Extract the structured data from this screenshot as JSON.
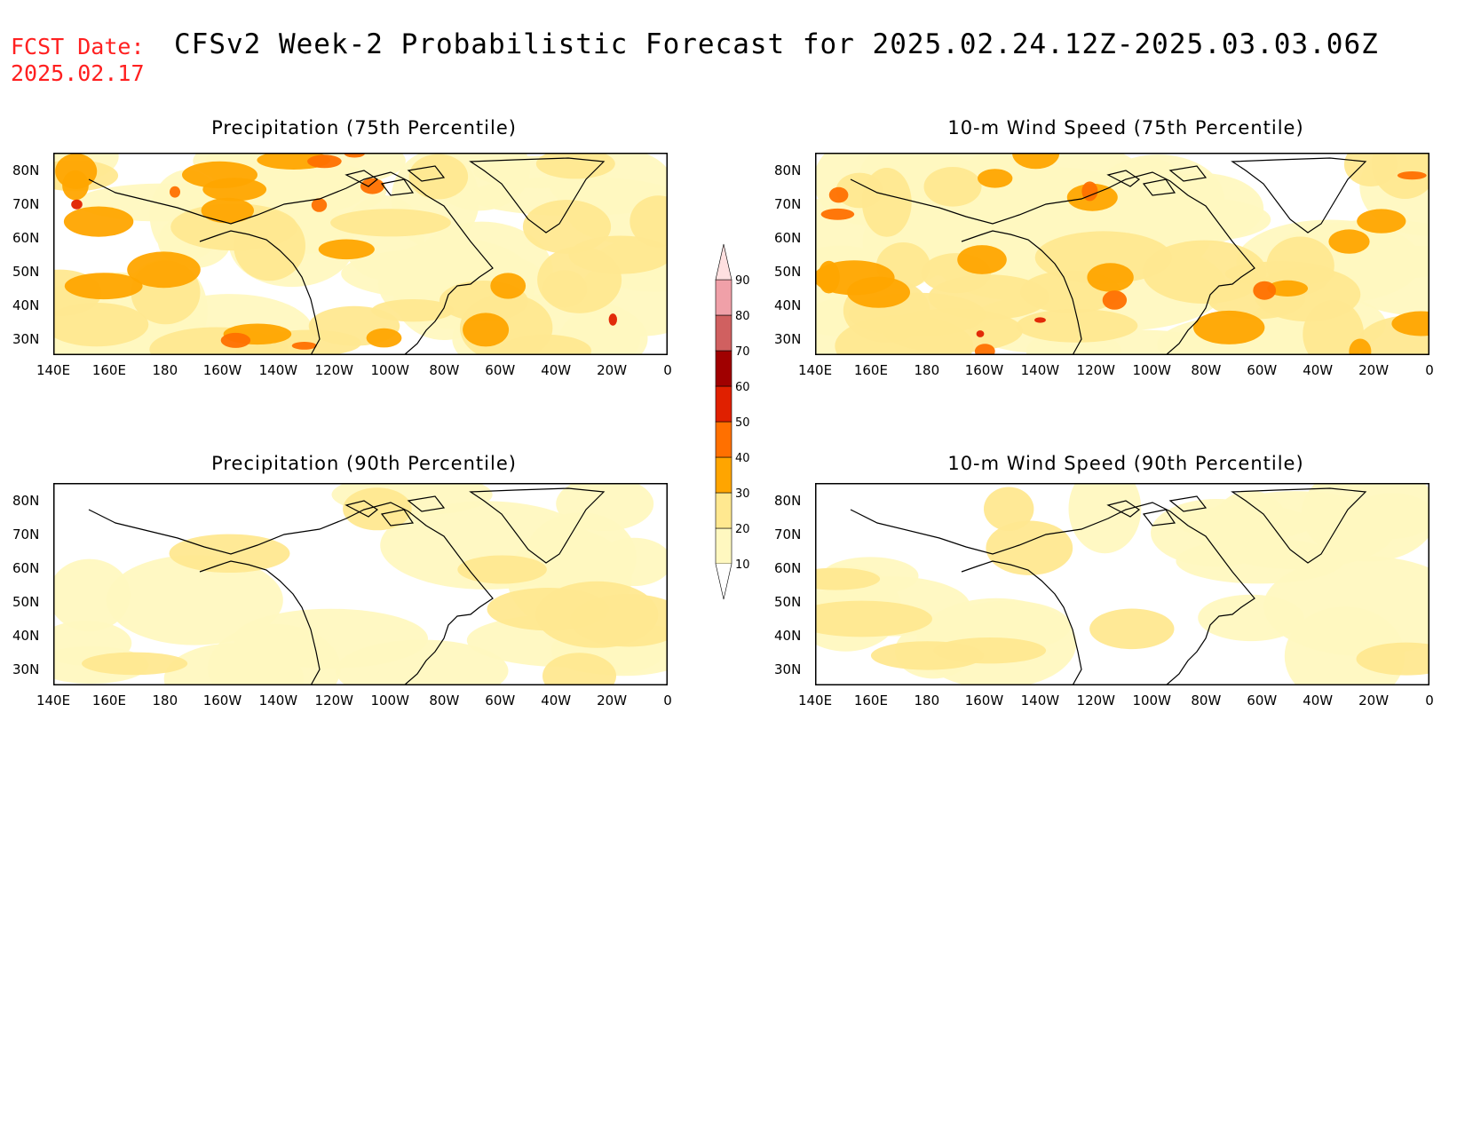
{
  "header": {
    "fcst_label": "FCST Date:",
    "fcst_date": "2025.02.17",
    "title": "CFSv2 Week-2 Probabilistic Forecast for 2025.02.24.12Z-2025.03.03.06Z"
  },
  "axes": {
    "lon_labels": [
      "140E",
      "160E",
      "180",
      "160W",
      "140W",
      "120W",
      "100W",
      "80W",
      "60W",
      "40W",
      "20W",
      "0"
    ],
    "lat_labels": [
      "80N",
      "70N",
      "60N",
      "50N",
      "40N",
      "30N"
    ]
  },
  "panels": [
    {
      "id": "precip-75",
      "title": "Precipitation (75th Percentile)",
      "intensity": 1.0
    },
    {
      "id": "wind-75",
      "title": "10-m Wind Speed (75th Percentile)",
      "intensity": 1.0
    },
    {
      "id": "precip-90",
      "title": "Precipitation (90th Percentile)",
      "intensity": 0.35
    },
    {
      "id": "wind-90",
      "title": "10-m Wind Speed (90th Percentile)",
      "intensity": 0.35
    }
  ],
  "colorbar": {
    "levels": [
      "10",
      "20",
      "30",
      "40",
      "50",
      "60",
      "70",
      "80",
      "90"
    ],
    "colors": [
      "#fff8c0",
      "#ffe890",
      "#ffa500",
      "#ff7000",
      "#e02000",
      "#a00000",
      "#d06060",
      "#f0a0a8",
      "#ffe0e0"
    ]
  }
}
